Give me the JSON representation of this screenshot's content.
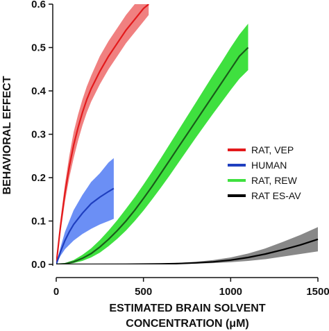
{
  "chart_data": {
    "type": "line",
    "xlabel_line1": "ESTIMATED BRAIN SOLVENT",
    "xlabel_line2": "CONCENTRATION (μM)",
    "ylabel": "BEHAVIORAL EFFECT",
    "xlim": [
      0,
      1500
    ],
    "ylim": [
      0,
      0.6
    ],
    "xticks": [
      0,
      500,
      1000,
      1500
    ],
    "yticks": [
      0.0,
      0.1,
      0.2,
      0.3,
      0.4,
      0.5,
      0.6
    ],
    "ytick_labels": [
      "0.0",
      "0.1",
      "0.2",
      "0.3",
      "0.4",
      "0.5",
      "0.6"
    ],
    "grid": false,
    "legend_position": "right",
    "series": [
      {
        "name": "RAT, VEP",
        "color": "#e31a1c",
        "band_color": "#f08080",
        "x": [
          0,
          25,
          50,
          75,
          100,
          125,
          150,
          175,
          200,
          250,
          300,
          350,
          400,
          450,
          500,
          530
        ],
        "y": [
          0.0,
          0.09,
          0.165,
          0.225,
          0.275,
          0.315,
          0.35,
          0.38,
          0.405,
          0.445,
          0.48,
          0.51,
          0.54,
          0.565,
          0.59,
          0.6
        ],
        "lower": [
          0.0,
          0.075,
          0.145,
          0.2,
          0.245,
          0.285,
          0.32,
          0.35,
          0.375,
          0.415,
          0.45,
          0.48,
          0.51,
          0.535,
          0.56,
          0.575
        ],
        "upper": [
          0.0,
          0.105,
          0.185,
          0.25,
          0.305,
          0.345,
          0.38,
          0.41,
          0.435,
          0.48,
          0.515,
          0.545,
          0.575,
          0.6,
          0.6,
          0.6
        ]
      },
      {
        "name": "HUMAN",
        "color": "#1f3fbf",
        "band_color": "#6b8ff5",
        "x": [
          0,
          25,
          50,
          75,
          100,
          150,
          200,
          250,
          300,
          330
        ],
        "y": [
          0.0,
          0.03,
          0.055,
          0.075,
          0.092,
          0.118,
          0.14,
          0.155,
          0.168,
          0.175
        ],
        "lower": [
          0.0,
          0.02,
          0.035,
          0.045,
          0.055,
          0.07,
          0.082,
          0.092,
          0.1,
          0.105
        ],
        "upper": [
          0.0,
          0.04,
          0.075,
          0.1,
          0.125,
          0.16,
          0.19,
          0.21,
          0.235,
          0.245
        ]
      },
      {
        "name": "RAT, REW",
        "color": "#1a5c1a",
        "band_color": "#3fe03f",
        "x": [
          0,
          50,
          100,
          150,
          200,
          250,
          300,
          350,
          400,
          450,
          500,
          550,
          600,
          650,
          700,
          750,
          800,
          850,
          900,
          950,
          1000,
          1050,
          1100
        ],
        "y": [
          0.0,
          0.0015,
          0.006,
          0.014,
          0.025,
          0.04,
          0.058,
          0.078,
          0.1,
          0.125,
          0.152,
          0.18,
          0.21,
          0.24,
          0.27,
          0.3,
          0.33,
          0.36,
          0.39,
          0.42,
          0.45,
          0.48,
          0.5
        ],
        "lower": [
          0.0,
          0.0005,
          0.003,
          0.008,
          0.016,
          0.027,
          0.042,
          0.059,
          0.078,
          0.1,
          0.124,
          0.15,
          0.177,
          0.205,
          0.234,
          0.263,
          0.292,
          0.32,
          0.348,
          0.375,
          0.402,
          0.428,
          0.448
        ],
        "upper": [
          0.0,
          0.003,
          0.01,
          0.022,
          0.037,
          0.056,
          0.078,
          0.102,
          0.128,
          0.155,
          0.184,
          0.214,
          0.245,
          0.277,
          0.309,
          0.341,
          0.373,
          0.405,
          0.437,
          0.468,
          0.5,
          0.53,
          0.555
        ]
      },
      {
        "name": "RAT ES-AV",
        "color": "#000000",
        "band_color": "#888888",
        "x": [
          0,
          200,
          400,
          600,
          700,
          800,
          900,
          1000,
          1100,
          1200,
          1300,
          1400,
          1500
        ],
        "y": [
          0.0,
          0.0,
          0.0003,
          0.001,
          0.002,
          0.0035,
          0.006,
          0.01,
          0.016,
          0.024,
          0.034,
          0.045,
          0.058
        ],
        "lower": [
          0.0,
          0.0,
          0.0001,
          0.0005,
          0.001,
          0.0018,
          0.003,
          0.005,
          0.008,
          0.012,
          0.018,
          0.024,
          0.03
        ],
        "upper": [
          0.0,
          0.0,
          0.0006,
          0.0018,
          0.0035,
          0.006,
          0.01,
          0.016,
          0.025,
          0.037,
          0.052,
          0.068,
          0.086
        ]
      }
    ]
  }
}
